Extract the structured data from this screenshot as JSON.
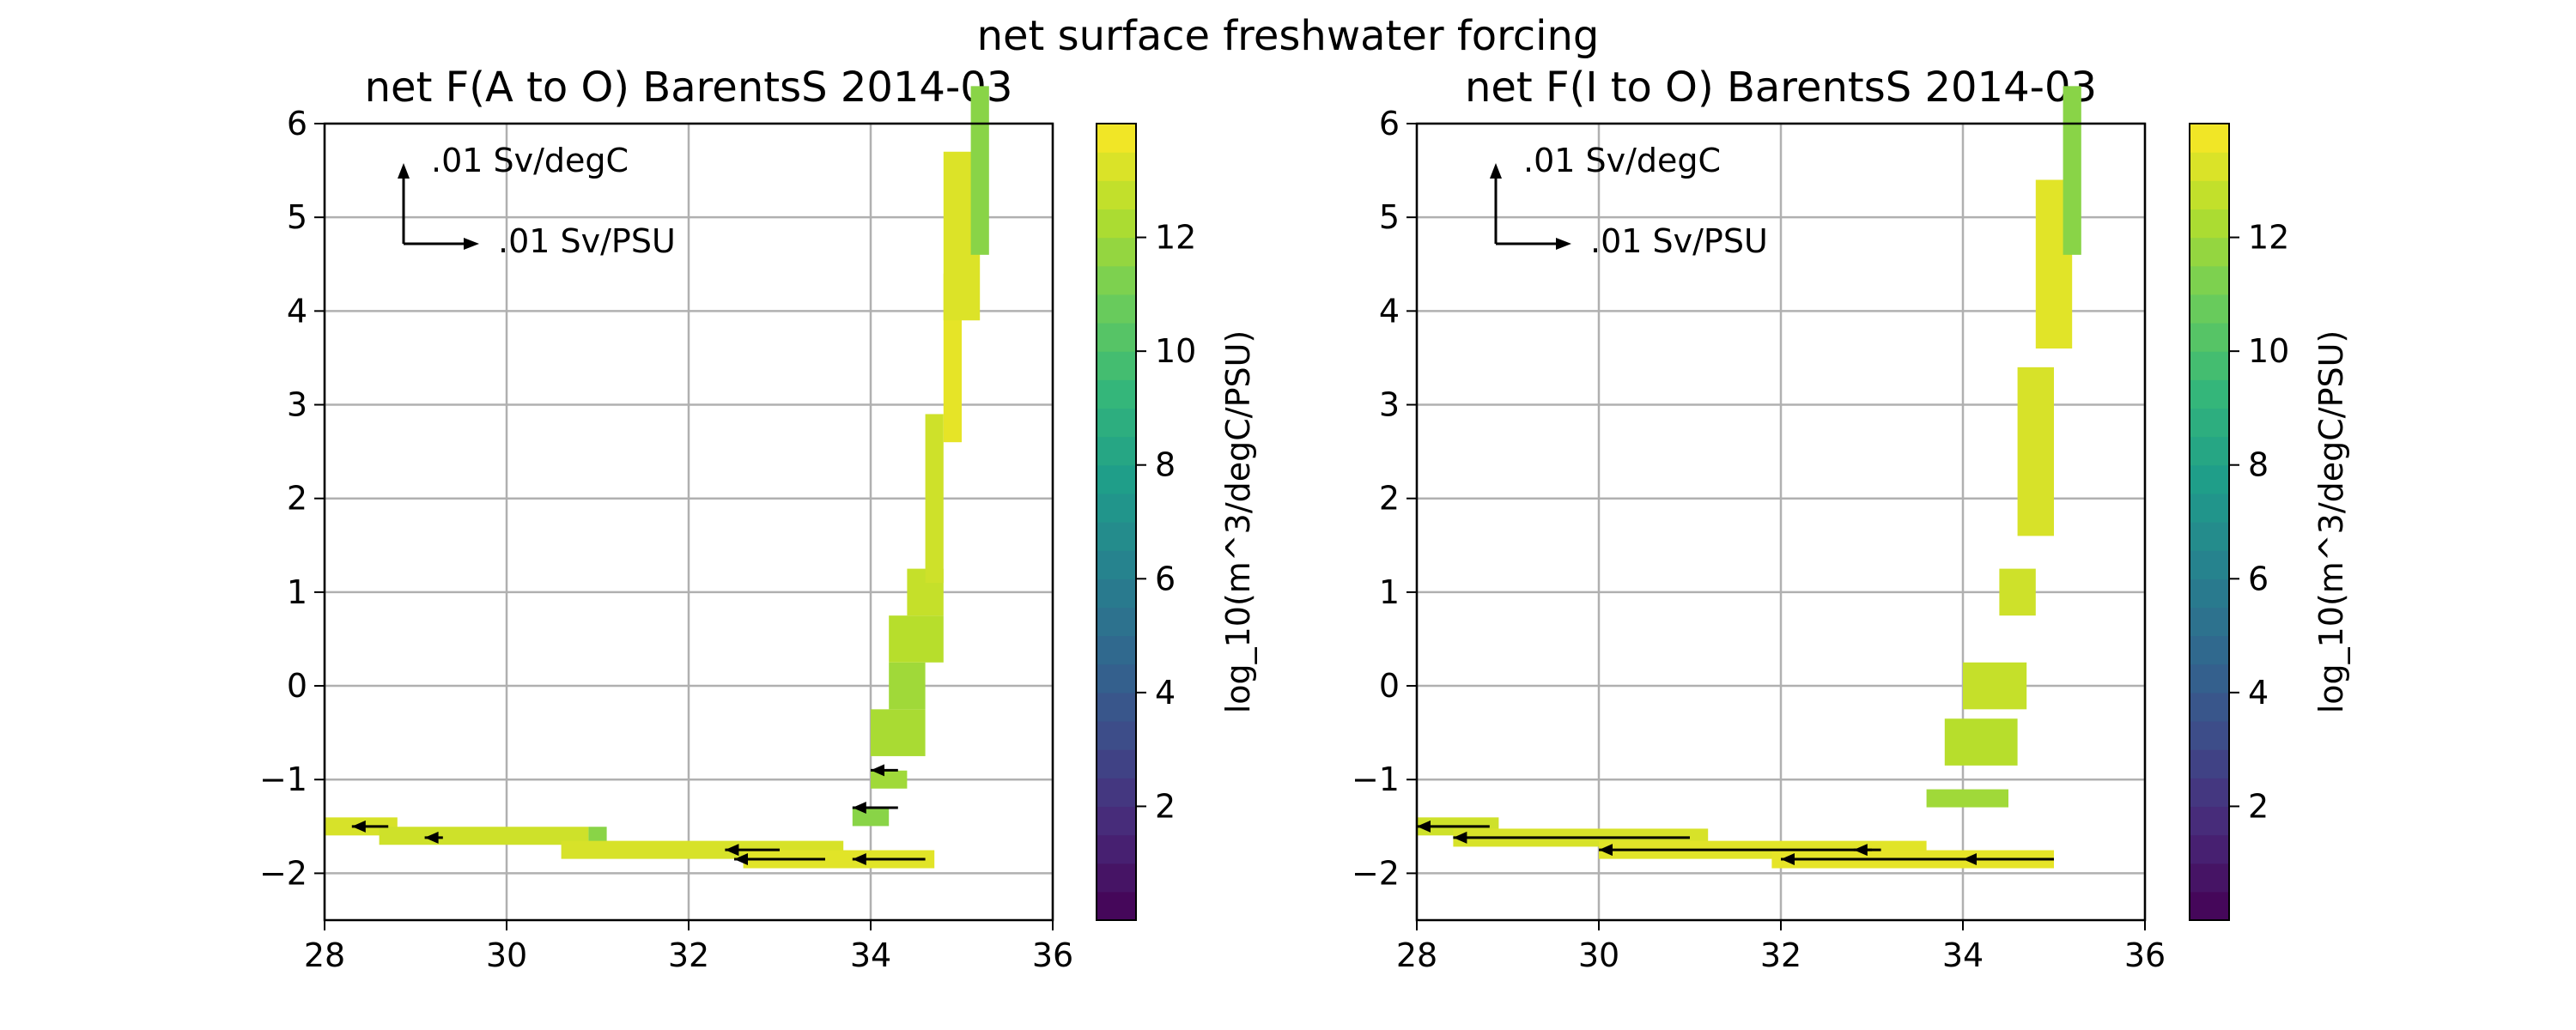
{
  "figure": {
    "suptitle": "net surface freshwater forcing"
  },
  "chart_data": [
    {
      "type": "heatmap",
      "title": "net F(A to O) BarentsS 2014-03",
      "xlim": [
        28,
        36
      ],
      "ylim": [
        -2.5,
        6
      ],
      "xticks": [
        "28",
        "30",
        "32",
        "34",
        "36"
      ],
      "yticks": [
        "−2",
        "−1",
        "0",
        "1",
        "2",
        "3",
        "4",
        "5",
        "6"
      ],
      "grid": true,
      "colormap": "viridis",
      "colorbar": {
        "label": "log_10(m^3/degC/PSU)",
        "range": [
          0,
          14
        ],
        "ticks": [
          "2",
          "4",
          "6",
          "8",
          "10",
          "12"
        ]
      },
      "quiver_key": {
        "vertical_label": ".01 Sv/degC",
        "horizontal_label": ".01 Sv/PSU"
      },
      "cells": [
        {
          "s_range": [
            28.0,
            28.8
          ],
          "t": -1.5,
          "value": 13.2
        },
        {
          "s_range": [
            28.6,
            30.9
          ],
          "t": -1.6,
          "value": 13.0
        },
        {
          "s_range": [
            30.9,
            31.1
          ],
          "t": -1.6,
          "value": 11.5
        },
        {
          "s_range": [
            30.6,
            33.7
          ],
          "t": -1.75,
          "value": 13.2
        },
        {
          "s_range": [
            32.6,
            34.7
          ],
          "t": -1.85,
          "value": 13.4
        },
        {
          "s_range": [
            33.8,
            34.2
          ],
          "t": -1.4,
          "value": 11.5
        },
        {
          "s_range": [
            34.0,
            34.4
          ],
          "t": -1.0,
          "value": 12.0
        },
        {
          "s_range": [
            34.0,
            34.6
          ],
          "t": -0.5,
          "value": 12.2
        },
        {
          "s_range": [
            34.2,
            34.6
          ],
          "t": 0.0,
          "value": 12.0
        },
        {
          "s_range": [
            34.2,
            34.8
          ],
          "t": 0.5,
          "value": 12.5
        },
        {
          "s_range": [
            34.4,
            34.8
          ],
          "t": 1.0,
          "value": 12.8
        },
        {
          "s_range": [
            34.6,
            34.8
          ],
          "t": 2.0,
          "value": 13.0
        },
        {
          "s_range": [
            34.8,
            35.0
          ],
          "t": 3.5,
          "value": 13.5
        },
        {
          "s_range": [
            34.8,
            35.2
          ],
          "t": 4.8,
          "value": 13.3
        },
        {
          "s_range": [
            35.1,
            35.3
          ],
          "t": 5.5,
          "value": 11.5
        }
      ],
      "arrows": [
        {
          "s": 28.7,
          "t": -1.5,
          "ds": -0.4
        },
        {
          "s": 29.3,
          "t": -1.62,
          "ds": -0.2
        },
        {
          "s": 33.0,
          "t": -1.75,
          "ds": -0.6
        },
        {
          "s": 33.5,
          "t": -1.85,
          "ds": -1.0
        },
        {
          "s": 34.6,
          "t": -1.85,
          "ds": -0.8
        },
        {
          "s": 34.3,
          "t": -1.3,
          "ds": -0.5
        },
        {
          "s": 34.3,
          "t": -0.9,
          "ds": -0.3
        }
      ]
    },
    {
      "type": "heatmap",
      "title": "net F(I to O) BarentsS 2014-03",
      "xlim": [
        28,
        36
      ],
      "ylim": [
        -2.5,
        6
      ],
      "xticks": [
        "28",
        "30",
        "32",
        "34",
        "36"
      ],
      "yticks": [
        "−2",
        "−1",
        "0",
        "1",
        "2",
        "3",
        "4",
        "5",
        "6"
      ],
      "grid": true,
      "colormap": "viridis",
      "colorbar": {
        "label": "log_10(m^3/degC/PSU)",
        "range": [
          0,
          14
        ],
        "ticks": [
          "2",
          "4",
          "6",
          "8",
          "10",
          "12"
        ]
      },
      "quiver_key": {
        "vertical_label": ".01 Sv/degC",
        "horizontal_label": ".01 Sv/PSU"
      },
      "cells": [
        {
          "s_range": [
            28.0,
            28.9
          ],
          "t": -1.5,
          "value": 13.0
        },
        {
          "s_range": [
            28.4,
            31.2
          ],
          "t": -1.62,
          "value": 13.2
        },
        {
          "s_range": [
            30.0,
            33.6
          ],
          "t": -1.75,
          "value": 13.4
        },
        {
          "s_range": [
            31.9,
            35.0
          ],
          "t": -1.85,
          "value": 13.5
        },
        {
          "s_range": [
            33.6,
            34.5
          ],
          "t": -1.2,
          "value": 12.0
        },
        {
          "s_range": [
            33.8,
            34.6
          ],
          "t": -0.6,
          "value": 12.5
        },
        {
          "s_range": [
            34.0,
            34.7
          ],
          "t": 0.0,
          "value": 12.8
        },
        {
          "s_range": [
            34.4,
            34.8
          ],
          "t": 1.0,
          "value": 13.0
        },
        {
          "s_range": [
            34.6,
            35.0
          ],
          "t": 2.5,
          "value": 13.2
        },
        {
          "s_range": [
            34.8,
            35.2
          ],
          "t": 4.5,
          "value": 13.4
        },
        {
          "s_range": [
            35.1,
            35.3
          ],
          "t": 5.5,
          "value": 11.5
        }
      ],
      "arrows": [
        {
          "s": 28.8,
          "t": -1.5,
          "ds": -0.8
        },
        {
          "s": 31.0,
          "t": -1.62,
          "ds": -2.6
        },
        {
          "s": 33.0,
          "t": -1.75,
          "ds": -3.0
        },
        {
          "s": 33.1,
          "t": -1.75,
          "ds": -0.3
        },
        {
          "s": 34.4,
          "t": -1.85,
          "ds": -2.4
        },
        {
          "s": 35.0,
          "t": -1.85,
          "ds": -1.0
        }
      ]
    }
  ]
}
